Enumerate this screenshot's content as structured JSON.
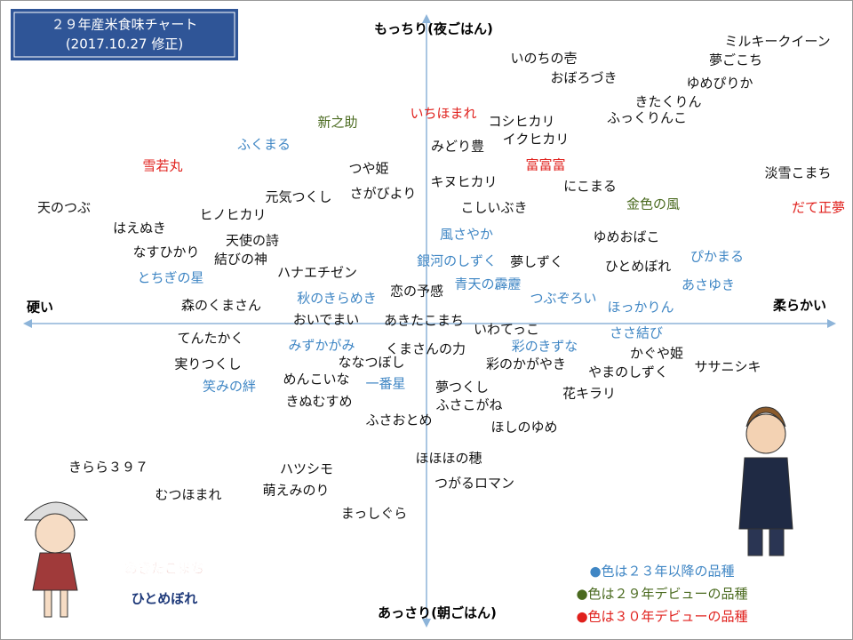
{
  "title_box": {
    "lines": [
      "２９年産米食味チャート",
      "(2017.10.27 修正)"
    ]
  },
  "axes": {
    "top": "もっちり(夜ごはん)",
    "bottom": "あっさり(朝ごはん)",
    "left": "硬い",
    "right": "柔らかい"
  },
  "colors": {
    "black": "#111111",
    "blue": "#3f86c4",
    "green": "#4a6a1f",
    "red": "#e0201c"
  },
  "nodes": [
    {
      "label": "ミルキークイーン",
      "color": "black"
    },
    {
      "label": "夢ごこち",
      "color": "black"
    },
    {
      "label": "いのちの壱",
      "color": "black"
    },
    {
      "label": "おぼろづき",
      "color": "black"
    },
    {
      "label": "ゆめぴりか",
      "color": "black"
    },
    {
      "label": "きたくりん",
      "color": "black"
    },
    {
      "label": "ふっくりんこ",
      "color": "black"
    },
    {
      "label": "いちほまれ",
      "color": "red"
    },
    {
      "label": "コシヒカリ",
      "color": "black"
    },
    {
      "label": "新之助",
      "color": "green"
    },
    {
      "label": "イクヒカリ",
      "color": "black"
    },
    {
      "label": "ふくまる",
      "color": "blue"
    },
    {
      "label": "みどり豊",
      "color": "black"
    },
    {
      "label": "富富富",
      "color": "red"
    },
    {
      "label": "雪若丸",
      "color": "red"
    },
    {
      "label": "つや姫",
      "color": "black"
    },
    {
      "label": "淡雪こまち",
      "color": "black"
    },
    {
      "label": "キヌヒカリ",
      "color": "black"
    },
    {
      "label": "にこまる",
      "color": "black"
    },
    {
      "label": "さがびより",
      "color": "black"
    },
    {
      "label": "元気つくし",
      "color": "black"
    },
    {
      "label": "天のつぶ",
      "color": "black"
    },
    {
      "label": "金色の風",
      "color": "green"
    },
    {
      "label": "だて正夢",
      "color": "red"
    },
    {
      "label": "こしいぶき",
      "color": "black"
    },
    {
      "label": "ヒノヒカリ",
      "color": "black"
    },
    {
      "label": "はえぬき",
      "color": "black"
    },
    {
      "label": "風さやか",
      "color": "blue"
    },
    {
      "label": "ゆめおばこ",
      "color": "black"
    },
    {
      "label": "天使の詩",
      "color": "black"
    },
    {
      "label": "なすひかり",
      "color": "black"
    },
    {
      "label": "結びの神",
      "color": "black"
    },
    {
      "label": "ぴかまる",
      "color": "blue"
    },
    {
      "label": "銀河のしずく",
      "color": "blue"
    },
    {
      "label": "夢しずく",
      "color": "black"
    },
    {
      "label": "ひとめぼれ",
      "color": "black"
    },
    {
      "label": "ハナエチゼン",
      "color": "black"
    },
    {
      "label": "とちぎの星",
      "color": "blue"
    },
    {
      "label": "青天の霹靂",
      "color": "blue"
    },
    {
      "label": "あさゆき",
      "color": "blue"
    },
    {
      "label": "恋の予感",
      "color": "black"
    },
    {
      "label": "秋のきらめき",
      "color": "blue"
    },
    {
      "label": "つぶぞろい",
      "color": "blue"
    },
    {
      "label": "森のくまさん",
      "color": "black"
    },
    {
      "label": "ほっかりん",
      "color": "blue"
    },
    {
      "label": "おいでまい",
      "color": "black"
    },
    {
      "label": "あきたこまち",
      "color": "black"
    },
    {
      "label": "いわてっこ",
      "color": "black"
    },
    {
      "label": "てんたかく",
      "color": "black"
    },
    {
      "label": "ささ結び",
      "color": "blue"
    },
    {
      "label": "みずかがみ",
      "color": "blue"
    },
    {
      "label": "くまさんの力",
      "color": "black"
    },
    {
      "label": "彩のきずな",
      "color": "blue"
    },
    {
      "label": "かぐや姫",
      "color": "black"
    },
    {
      "label": "ななつぼし",
      "color": "black"
    },
    {
      "label": "実りつくし",
      "color": "black"
    },
    {
      "label": "彩のかがやき",
      "color": "black"
    },
    {
      "label": "ササニシキ",
      "color": "black"
    },
    {
      "label": "やまのしずく",
      "color": "black"
    },
    {
      "label": "めんこいな",
      "color": "black"
    },
    {
      "label": "笑みの絆",
      "color": "blue"
    },
    {
      "label": "一番星",
      "color": "blue"
    },
    {
      "label": "夢つくし",
      "color": "black"
    },
    {
      "label": "花キラリ",
      "color": "black"
    },
    {
      "label": "きぬむすめ",
      "color": "black"
    },
    {
      "label": "ふさこがね",
      "color": "black"
    },
    {
      "label": "ふさおとめ",
      "color": "black"
    },
    {
      "label": "ほしのゆめ",
      "color": "black"
    },
    {
      "label": "ほほほの穂",
      "color": "black"
    },
    {
      "label": "きらら３９７",
      "color": "black"
    },
    {
      "label": "ハツシモ",
      "color": "black"
    },
    {
      "label": "つがるロマン",
      "color": "black"
    },
    {
      "label": "萌えみのり",
      "color": "black"
    },
    {
      "label": "むつほまれ",
      "color": "black"
    },
    {
      "label": "まっしぐら",
      "color": "black"
    }
  ],
  "legend": [
    {
      "text": "●色は２３年以降の品種",
      "color": "blue"
    },
    {
      "text": "●色は２９年デビューの品種",
      "color": "green"
    },
    {
      "text": "●色は３０年デビューの品種",
      "color": "red"
    }
  ],
  "logo": {
    "top": "あきたこまち",
    "bottom": "ひとめぼれ"
  }
}
